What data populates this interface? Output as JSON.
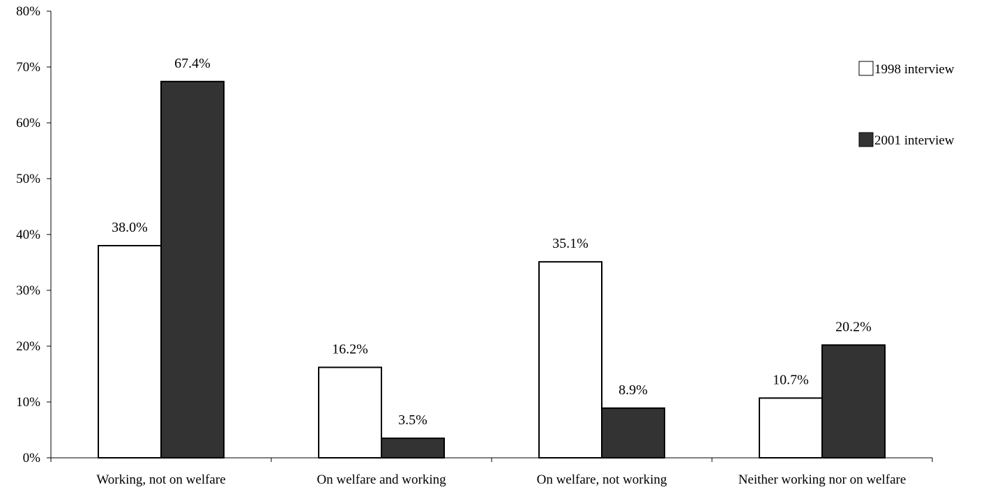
{
  "chart_data": {
    "type": "bar",
    "categories": [
      "Working, not on welfare",
      "On welfare and working",
      "On welfare, not working",
      "Neither working nor on welfare"
    ],
    "series": [
      {
        "name": "1998 interview",
        "values": [
          38.0,
          16.2,
          35.1,
          10.7
        ],
        "labels": [
          "38.0%",
          "16.2%",
          "35.1%",
          "10.7%"
        ],
        "color": "#ffffff"
      },
      {
        "name": "2001 interview",
        "values": [
          67.4,
          3.5,
          8.9,
          20.2
        ],
        "labels": [
          "67.4%",
          "3.5%",
          "8.9%",
          "20.2%"
        ],
        "color": "#333333"
      }
    ],
    "yticks": [
      "0%",
      "10%",
      "20%",
      "30%",
      "40%",
      "50%",
      "60%",
      "70%",
      "80%"
    ],
    "ylim": [
      0,
      80
    ],
    "grid": false,
    "legend_position": "top-right",
    "xlabel": "",
    "ylabel": "",
    "title": ""
  }
}
